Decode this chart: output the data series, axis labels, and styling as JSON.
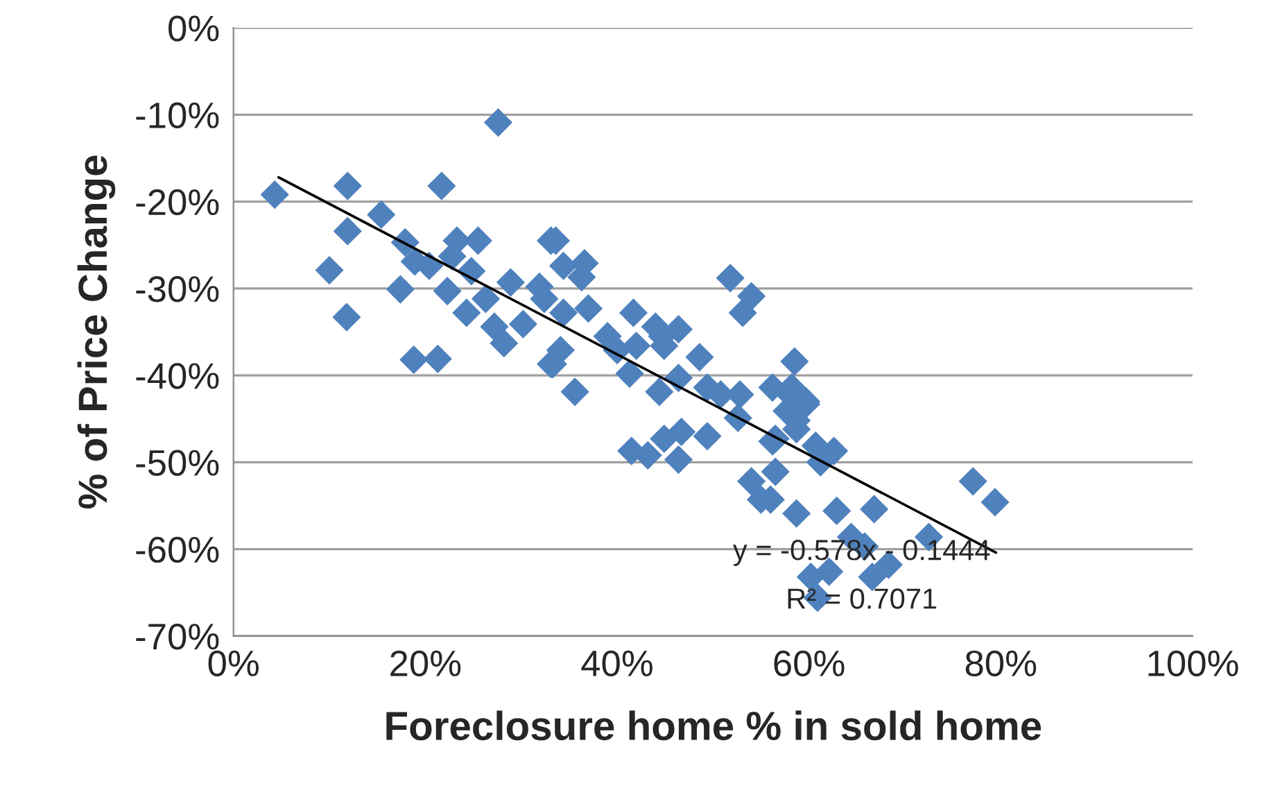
{
  "chart_data": {
    "type": "scatter",
    "xlabel": "Foreclosure home % in sold home",
    "ylabel": "% of Price Change",
    "xlim": [
      0,
      100
    ],
    "ylim": [
      -70,
      0
    ],
    "xticks": [
      {
        "value": 0,
        "label": "0%"
      },
      {
        "value": 20,
        "label": "20%"
      },
      {
        "value": 40,
        "label": "40%"
      },
      {
        "value": 60,
        "label": "60%"
      },
      {
        "value": 80,
        "label": "80%"
      },
      {
        "value": 100,
        "label": "100%"
      }
    ],
    "yticks": [
      {
        "value": -70,
        "label": "-70%"
      },
      {
        "value": -60,
        "label": "-60%"
      },
      {
        "value": -50,
        "label": "-50%"
      },
      {
        "value": -40,
        "label": "-40%"
      },
      {
        "value": -30,
        "label": "-30%"
      },
      {
        "value": -20,
        "label": "-20%"
      },
      {
        "value": -10,
        "label": "-10%"
      },
      {
        "value": 0,
        "label": "0%"
      }
    ],
    "grid": "y",
    "legend": false,
    "marker": "diamond",
    "series": [
      {
        "color": "#4f81bd",
        "x": [
          4.3,
          11.9,
          21.7,
          27.6,
          15.4,
          11.9,
          10.0,
          11.8,
          18.8,
          21.3,
          17.9,
          17.4,
          23.3,
          25.5,
          22.3,
          24.3,
          28.9,
          31.9,
          27.2,
          28.2,
          33.3,
          33.6,
          30.2,
          18.9,
          20.4,
          22.8,
          24.8,
          26.3,
          33.1,
          34.4,
          36.6,
          36.3,
          32.4,
          34.4,
          37.0,
          34.1,
          33.1,
          35.6,
          39.0,
          40.0,
          41.7,
          42.0,
          44.0,
          44.7,
          46.4,
          44.9,
          41.3,
          44.4,
          46.4,
          48.6,
          51.8,
          54.0,
          53.1,
          49.4,
          50.8,
          52.8,
          52.6,
          56.2,
          58.5,
          58.0,
          59.7,
          58.7,
          56.5,
          60.7,
          62.6,
          61.2,
          41.5,
          43.2,
          44.9,
          46.7,
          46.4,
          49.4,
          54.0,
          56.5,
          55.0,
          56.0,
          58.7,
          62.9,
          58.2,
          59.7,
          57.7,
          58.7,
          56.2,
          66.8,
          77.1,
          79.4,
          64.4,
          65.8,
          72.5,
          60.2,
          62.1,
          66.6,
          68.3,
          60.9
        ],
        "values": [
          -19.2,
          -18.2,
          -18.2,
          -10.9,
          -21.5,
          -23.4,
          -27.9,
          -33.3,
          -38.2,
          -38.1,
          -24.7,
          -30.1,
          -24.5,
          -24.5,
          -30.3,
          -32.8,
          -29.3,
          -29.8,
          -34.4,
          -36.3,
          -38.7,
          -24.5,
          -34.1,
          -26.9,
          -27.4,
          -26.3,
          -28.0,
          -31.2,
          -24.5,
          -27.4,
          -27.1,
          -28.7,
          -31.2,
          -32.8,
          -32.3,
          -37.1,
          -38.7,
          -41.9,
          -35.5,
          -37.1,
          -32.8,
          -36.6,
          -34.4,
          -35.5,
          -34.7,
          -36.6,
          -39.8,
          -41.9,
          -40.3,
          -37.9,
          -28.8,
          -30.9,
          -32.8,
          -41.4,
          -42.2,
          -42.2,
          -44.9,
          -41.4,
          -38.4,
          -42.2,
          -43.0,
          -45.2,
          -47.3,
          -48.1,
          -48.7,
          -50.0,
          -48.7,
          -49.2,
          -47.3,
          -46.5,
          -49.7,
          -47.0,
          -52.2,
          -51.1,
          -54.3,
          -54.3,
          -55.9,
          -55.6,
          -41.4,
          -43.3,
          -44.1,
          -46.2,
          -47.6,
          -55.4,
          -52.2,
          -54.6,
          -58.6,
          -59.7,
          -58.6,
          -63.2,
          -62.6,
          -63.2,
          -61.8,
          -65.6
        ]
      },
      {
        "type": "line",
        "color": "#000000",
        "marker": "none",
        "line_style": "solid",
        "x": [
          4.7,
          79.5
        ],
        "values": [
          -17.2,
          -60.4
        ]
      }
    ],
    "annotations": [
      "y = -0.578x - 0.1444",
      "R² = 0.7071"
    ]
  }
}
